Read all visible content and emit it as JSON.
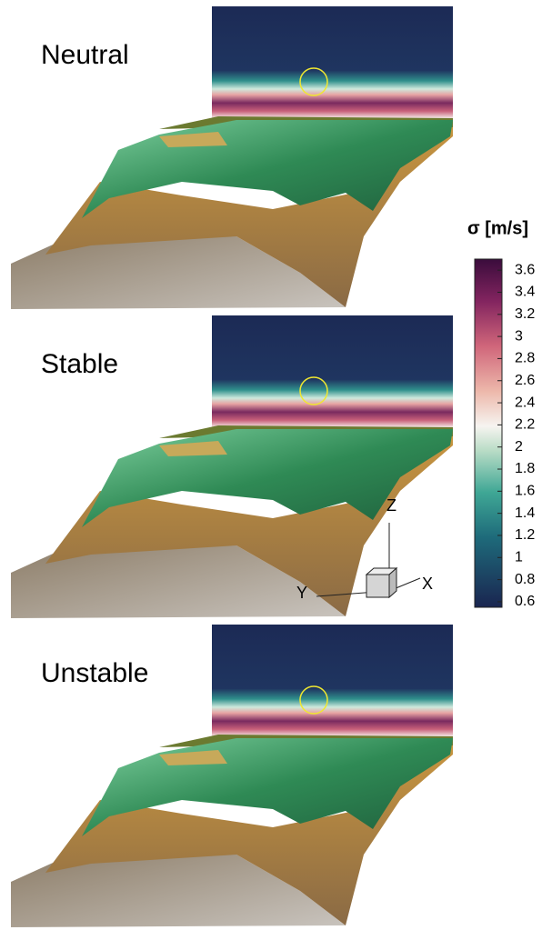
{
  "panels": [
    {
      "label": "Neutral"
    },
    {
      "label": "Stable"
    },
    {
      "label": "Unstable"
    }
  ],
  "colorbar": {
    "title": "σ [m/s]",
    "lim": [
      0.55,
      3.7
    ],
    "ticks": [
      0.6,
      0.8,
      1,
      1.2,
      1.4,
      1.6,
      1.8,
      2,
      2.2,
      2.4,
      2.6,
      2.8,
      3,
      3.2,
      3.4,
      3.6
    ]
  },
  "axes": {
    "z": "Z",
    "y": "Y",
    "x": "X"
  }
}
